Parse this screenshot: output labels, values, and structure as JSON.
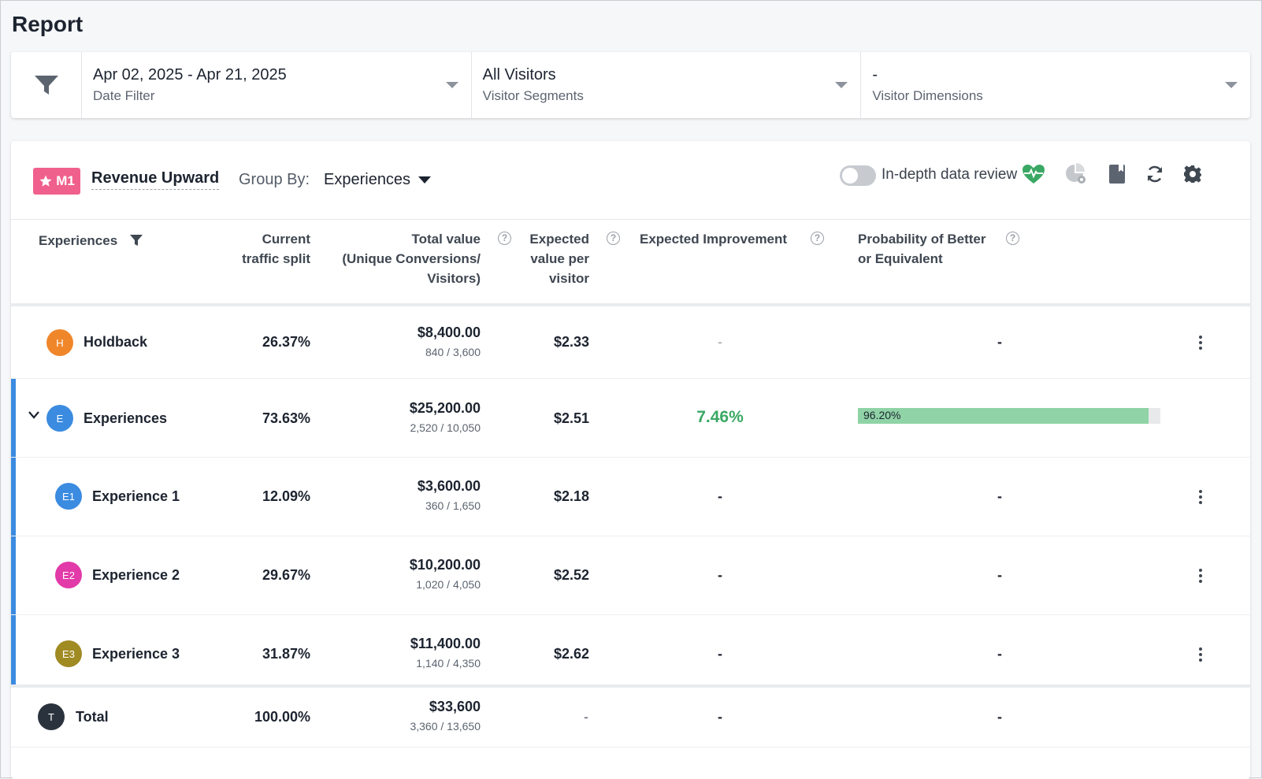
{
  "page": {
    "title": "Report"
  },
  "filters": {
    "date": {
      "value": "Apr 02, 2025 - Apr 21, 2025",
      "label": "Date Filter"
    },
    "segments": {
      "value": "All Visitors",
      "label": "Visitor Segments"
    },
    "dimensions": {
      "value": "-",
      "label": "Visitor Dimensions"
    }
  },
  "header": {
    "metric_badge": "M1",
    "metric_name": "Revenue Upward",
    "group_by_label": "Group By:",
    "group_by_value": "Experiences",
    "toggle_label": "In-depth data review",
    "toggle_on": false
  },
  "columns": {
    "experiences": "Experiences",
    "traffic": [
      "Current",
      "traffic split"
    ],
    "total_value": [
      "Total value",
      "(Unique Conversions/",
      "Visitors)"
    ],
    "expected_value": [
      "Expected",
      "value per",
      "visitor"
    ],
    "improvement": "Expected Improvement",
    "probability": [
      "Probability of Better",
      "or Equivalent"
    ]
  },
  "rows": [
    {
      "badge": "H",
      "color": "#f0862a",
      "name": "Holdback",
      "traffic": "26.37%",
      "total": "$8,400.00",
      "sub": "840 / 3,600",
      "epv": "$2.33",
      "improvement": "-",
      "probability": "-"
    },
    {
      "badge": "E",
      "color": "#3b8be0",
      "name": "Experiences",
      "traffic": "73.63%",
      "total": "$25,200.00",
      "sub": "2,520 / 10,050",
      "epv": "$2.51",
      "improvement": "7.46%",
      "probability": "96.20%",
      "probability_value": 0.962
    },
    {
      "badge": "E1",
      "color": "#3b8be0",
      "name": "Experience 1",
      "traffic": "12.09%",
      "total": "$3,600.00",
      "sub": "360 / 1,650",
      "epv": "$2.18",
      "improvement": "-",
      "probability": "-"
    },
    {
      "badge": "E2",
      "color": "#e23aa8",
      "name": "Experience 2",
      "traffic": "29.67%",
      "total": "$10,200.00",
      "sub": "1,020 / 4,050",
      "epv": "$2.52",
      "improvement": "-",
      "probability": "-"
    },
    {
      "badge": "E3",
      "color": "#a08a22",
      "name": "Experience 3",
      "traffic": "31.87%",
      "total": "$11,400.00",
      "sub": "1,140 / 4,350",
      "epv": "$2.62",
      "improvement": "-",
      "probability": "-"
    }
  ],
  "total": {
    "badge": "T",
    "color": "#2a333d",
    "name": "Total",
    "traffic": "100.00%",
    "total": "$33,600",
    "sub": "3,360 / 13,650",
    "epv": "-",
    "improvement": "-",
    "probability": "-"
  },
  "icons": [
    "filter-icon",
    "health-icon",
    "pie-settings-icon",
    "bookmark-icon",
    "refresh-icon",
    "settings-gear-icon"
  ],
  "colors": {
    "accent": "#3b8be0",
    "positive": "#3aa864",
    "badge": "#f0608c",
    "prob_fill": "#8fd3a6"
  }
}
